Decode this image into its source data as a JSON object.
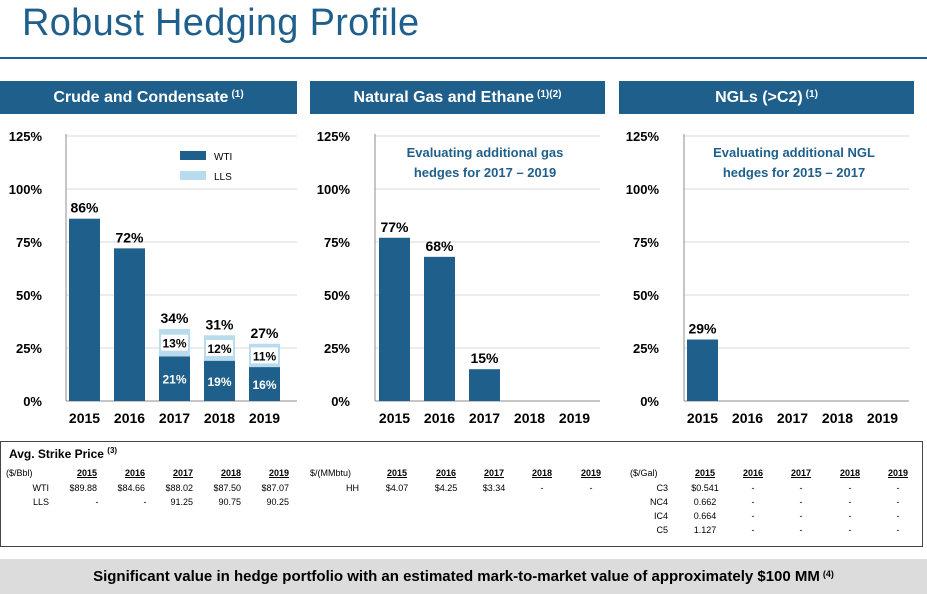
{
  "title": "Robust Hedging Profile",
  "colors": {
    "accent": "#1f5f8b",
    "light": "#b8dbee"
  },
  "panels": [
    {
      "title": "Crude and Condensate",
      "note": "(1)"
    },
    {
      "title": "Natural Gas and Ethane",
      "note": "(1)(2)"
    },
    {
      "title": "NGLs (>C2)",
      "note": "(1)"
    }
  ],
  "chart_data": [
    {
      "type": "bar",
      "title": "Crude and Condensate",
      "categories": [
        "2015",
        "2016",
        "2017",
        "2018",
        "2019"
      ],
      "yticks": [
        "125%",
        "100%",
        "75%",
        "50%",
        "25%",
        "0%"
      ],
      "ylim": [
        0,
        125
      ],
      "legend": [
        "WTI",
        "LLS"
      ],
      "series": [
        {
          "name": "WTI",
          "values": [
            86,
            72,
            21,
            19,
            16
          ]
        },
        {
          "name": "LLS",
          "values": [
            0,
            0,
            13,
            12,
            11
          ]
        }
      ],
      "total_labels": [
        "86%",
        "72%",
        "34%",
        "31%",
        "27%"
      ],
      "segment_labels": {
        "WTI": [
          "",
          "",
          "21%",
          "19%",
          "16%"
        ],
        "LLS": [
          "",
          "",
          "13%",
          "12%",
          "11%"
        ]
      }
    },
    {
      "type": "bar",
      "title": "Natural Gas and Ethane",
      "categories": [
        "2015",
        "2016",
        "2017",
        "2018",
        "2019"
      ],
      "yticks": [
        "125%",
        "100%",
        "75%",
        "50%",
        "25%",
        "0%"
      ],
      "ylim": [
        0,
        125
      ],
      "annotation": [
        "Evaluating additional gas",
        "hedges for 2017 – 2019"
      ],
      "series": [
        {
          "name": "Gas",
          "values": [
            77,
            68,
            15,
            0,
            0
          ]
        }
      ],
      "total_labels": [
        "77%",
        "68%",
        "15%",
        "",
        ""
      ]
    },
    {
      "type": "bar",
      "title": "NGLs (>C2)",
      "categories": [
        "2015",
        "2016",
        "2017",
        "2018",
        "2019"
      ],
      "yticks": [
        "125%",
        "100%",
        "75%",
        "50%",
        "25%",
        "0%"
      ],
      "ylim": [
        0,
        125
      ],
      "annotation": [
        "Evaluating additional NGL",
        "hedges for 2015 – 2017"
      ],
      "series": [
        {
          "name": "NGL",
          "values": [
            29,
            0,
            0,
            0,
            0
          ]
        }
      ],
      "total_labels": [
        "29%",
        "",
        "",
        "",
        ""
      ]
    }
  ],
  "strike": {
    "title": "Avg. Strike Price",
    "note": "(3)",
    "crude": {
      "unit": "($/Bbl)",
      "years": [
        "2015",
        "2016",
        "2017",
        "2018",
        "2019"
      ],
      "rows": [
        {
          "label": "WTI",
          "values": [
            "$89.88",
            "$84.66",
            "$88.02",
            "$87.50",
            "$87.07"
          ]
        },
        {
          "label": "LLS",
          "values": [
            "-",
            "-",
            "91.25",
            "90.75",
            "90.25"
          ]
        }
      ]
    },
    "gas": {
      "unit": "$/(MMbtu)",
      "years": [
        "2015",
        "2016",
        "2017",
        "2018",
        "2019"
      ],
      "rows": [
        {
          "label": "HH",
          "values": [
            "$4.07",
            "$4.25",
            "$3.34",
            "-",
            "-"
          ]
        }
      ]
    },
    "ngl": {
      "unit": "($/Gal)",
      "years": [
        "2015",
        "2016",
        "2017",
        "2018",
        "2019"
      ],
      "rows": [
        {
          "label": "C3",
          "values": [
            "$0.541",
            "-",
            "-",
            "-",
            "-"
          ]
        },
        {
          "label": "NC4",
          "values": [
            "0.662",
            "-",
            "-",
            "-",
            "-"
          ]
        },
        {
          "label": "IC4",
          "values": [
            "0.664",
            "-",
            "-",
            "-",
            "-"
          ]
        },
        {
          "label": "C5",
          "values": [
            "1.127",
            "-",
            "-",
            "-",
            "-"
          ]
        }
      ]
    }
  },
  "footer": {
    "text": "Significant value in hedge portfolio with an estimated mark-to-market value of approximately $100 MM",
    "note": "(4)"
  }
}
